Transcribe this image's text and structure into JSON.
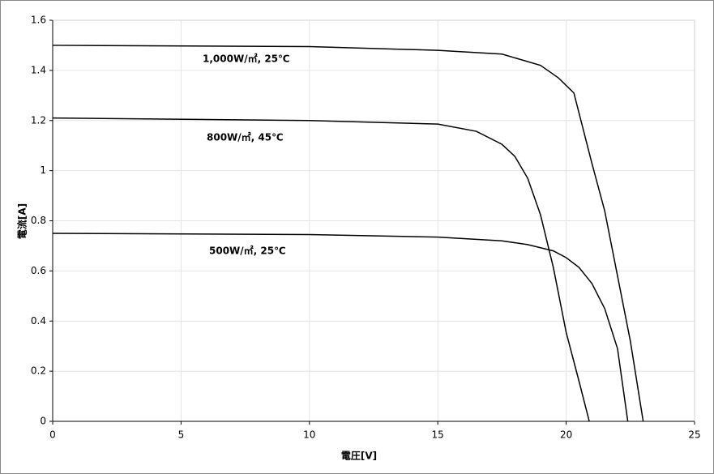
{
  "chart_data": {
    "type": "line",
    "x_label": "電圧[V]",
    "y_label": "電流[A]",
    "xlim": [
      0,
      25
    ],
    "xticks": [
      0,
      5,
      10,
      15,
      20,
      25
    ],
    "ylim": [
      0,
      1.6
    ],
    "yticks": [
      0,
      0.2,
      0.4,
      0.6,
      0.8,
      1,
      1.2,
      1.4,
      1.6
    ],
    "grid": true,
    "series": [
      {
        "name": "1,000W/㎡, 25℃",
        "color": "#000000",
        "x": [
          0,
          10,
          15,
          17.5,
          19,
          19.7,
          20.3,
          21,
          21.5,
          22,
          22.5,
          23
        ],
        "values": [
          1.5,
          1.495,
          1.48,
          1.465,
          1.42,
          1.37,
          1.31,
          1.03,
          0.84,
          0.58,
          0.32,
          0
        ]
      },
      {
        "name": "800W/㎡, 45℃",
        "color": "#000000",
        "x": [
          0,
          10,
          15,
          16.5,
          17.5,
          18,
          18.5,
          19,
          19.5,
          20,
          20.5,
          20.9
        ],
        "values": [
          1.21,
          1.2,
          1.186,
          1.157,
          1.105,
          1.057,
          0.97,
          0.824,
          0.614,
          0.355,
          0.16,
          0
        ]
      },
      {
        "name": "500W/㎡, 25℃",
        "color": "#000000",
        "x": [
          0,
          10,
          15,
          17.5,
          18.5,
          19.5,
          20,
          20.5,
          21,
          21.5,
          22,
          22.4
        ],
        "values": [
          0.75,
          0.745,
          0.735,
          0.72,
          0.705,
          0.68,
          0.653,
          0.614,
          0.55,
          0.45,
          0.29,
          0
        ]
      }
    ]
  }
}
